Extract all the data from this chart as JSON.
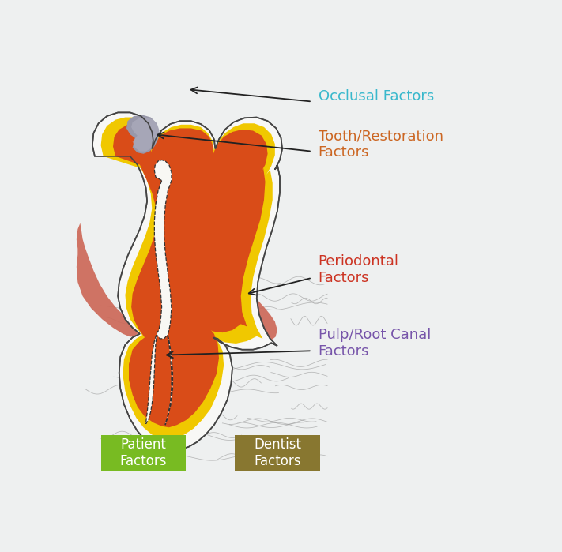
{
  "bg_color": "#eef0f0",
  "white_color": "#f8f8f6",
  "enamel_color": "#f0c800",
  "dentin_color": "#d94c18",
  "pulp_color": "#f8f8f4",
  "restoration_color": "#9898aa",
  "restoration_hi_color": "#b8b8c8",
  "gum_color": "#cc6655",
  "labels": {
    "occlusal": "Occlusal Factors",
    "tooth_restoration": "Tooth/Restoration\nFactors",
    "periodontal": "Periodontal\nFactors",
    "pulp": "Pulp/Root Canal\nFactors",
    "patient": "Patient\nFactors",
    "dentist": "Dentist\nFactors"
  },
  "label_colors": {
    "occlusal": "#38b8cc",
    "tooth_restoration": "#cc6622",
    "periodontal": "#cc3322",
    "pulp": "#7755aa",
    "patient": "#ffffff",
    "dentist": "#ffffff"
  },
  "patient_box_color": "#78bb22",
  "dentist_box_color": "#887730",
  "figsize": [
    7.11,
    6.99
  ],
  "dpi": 100
}
